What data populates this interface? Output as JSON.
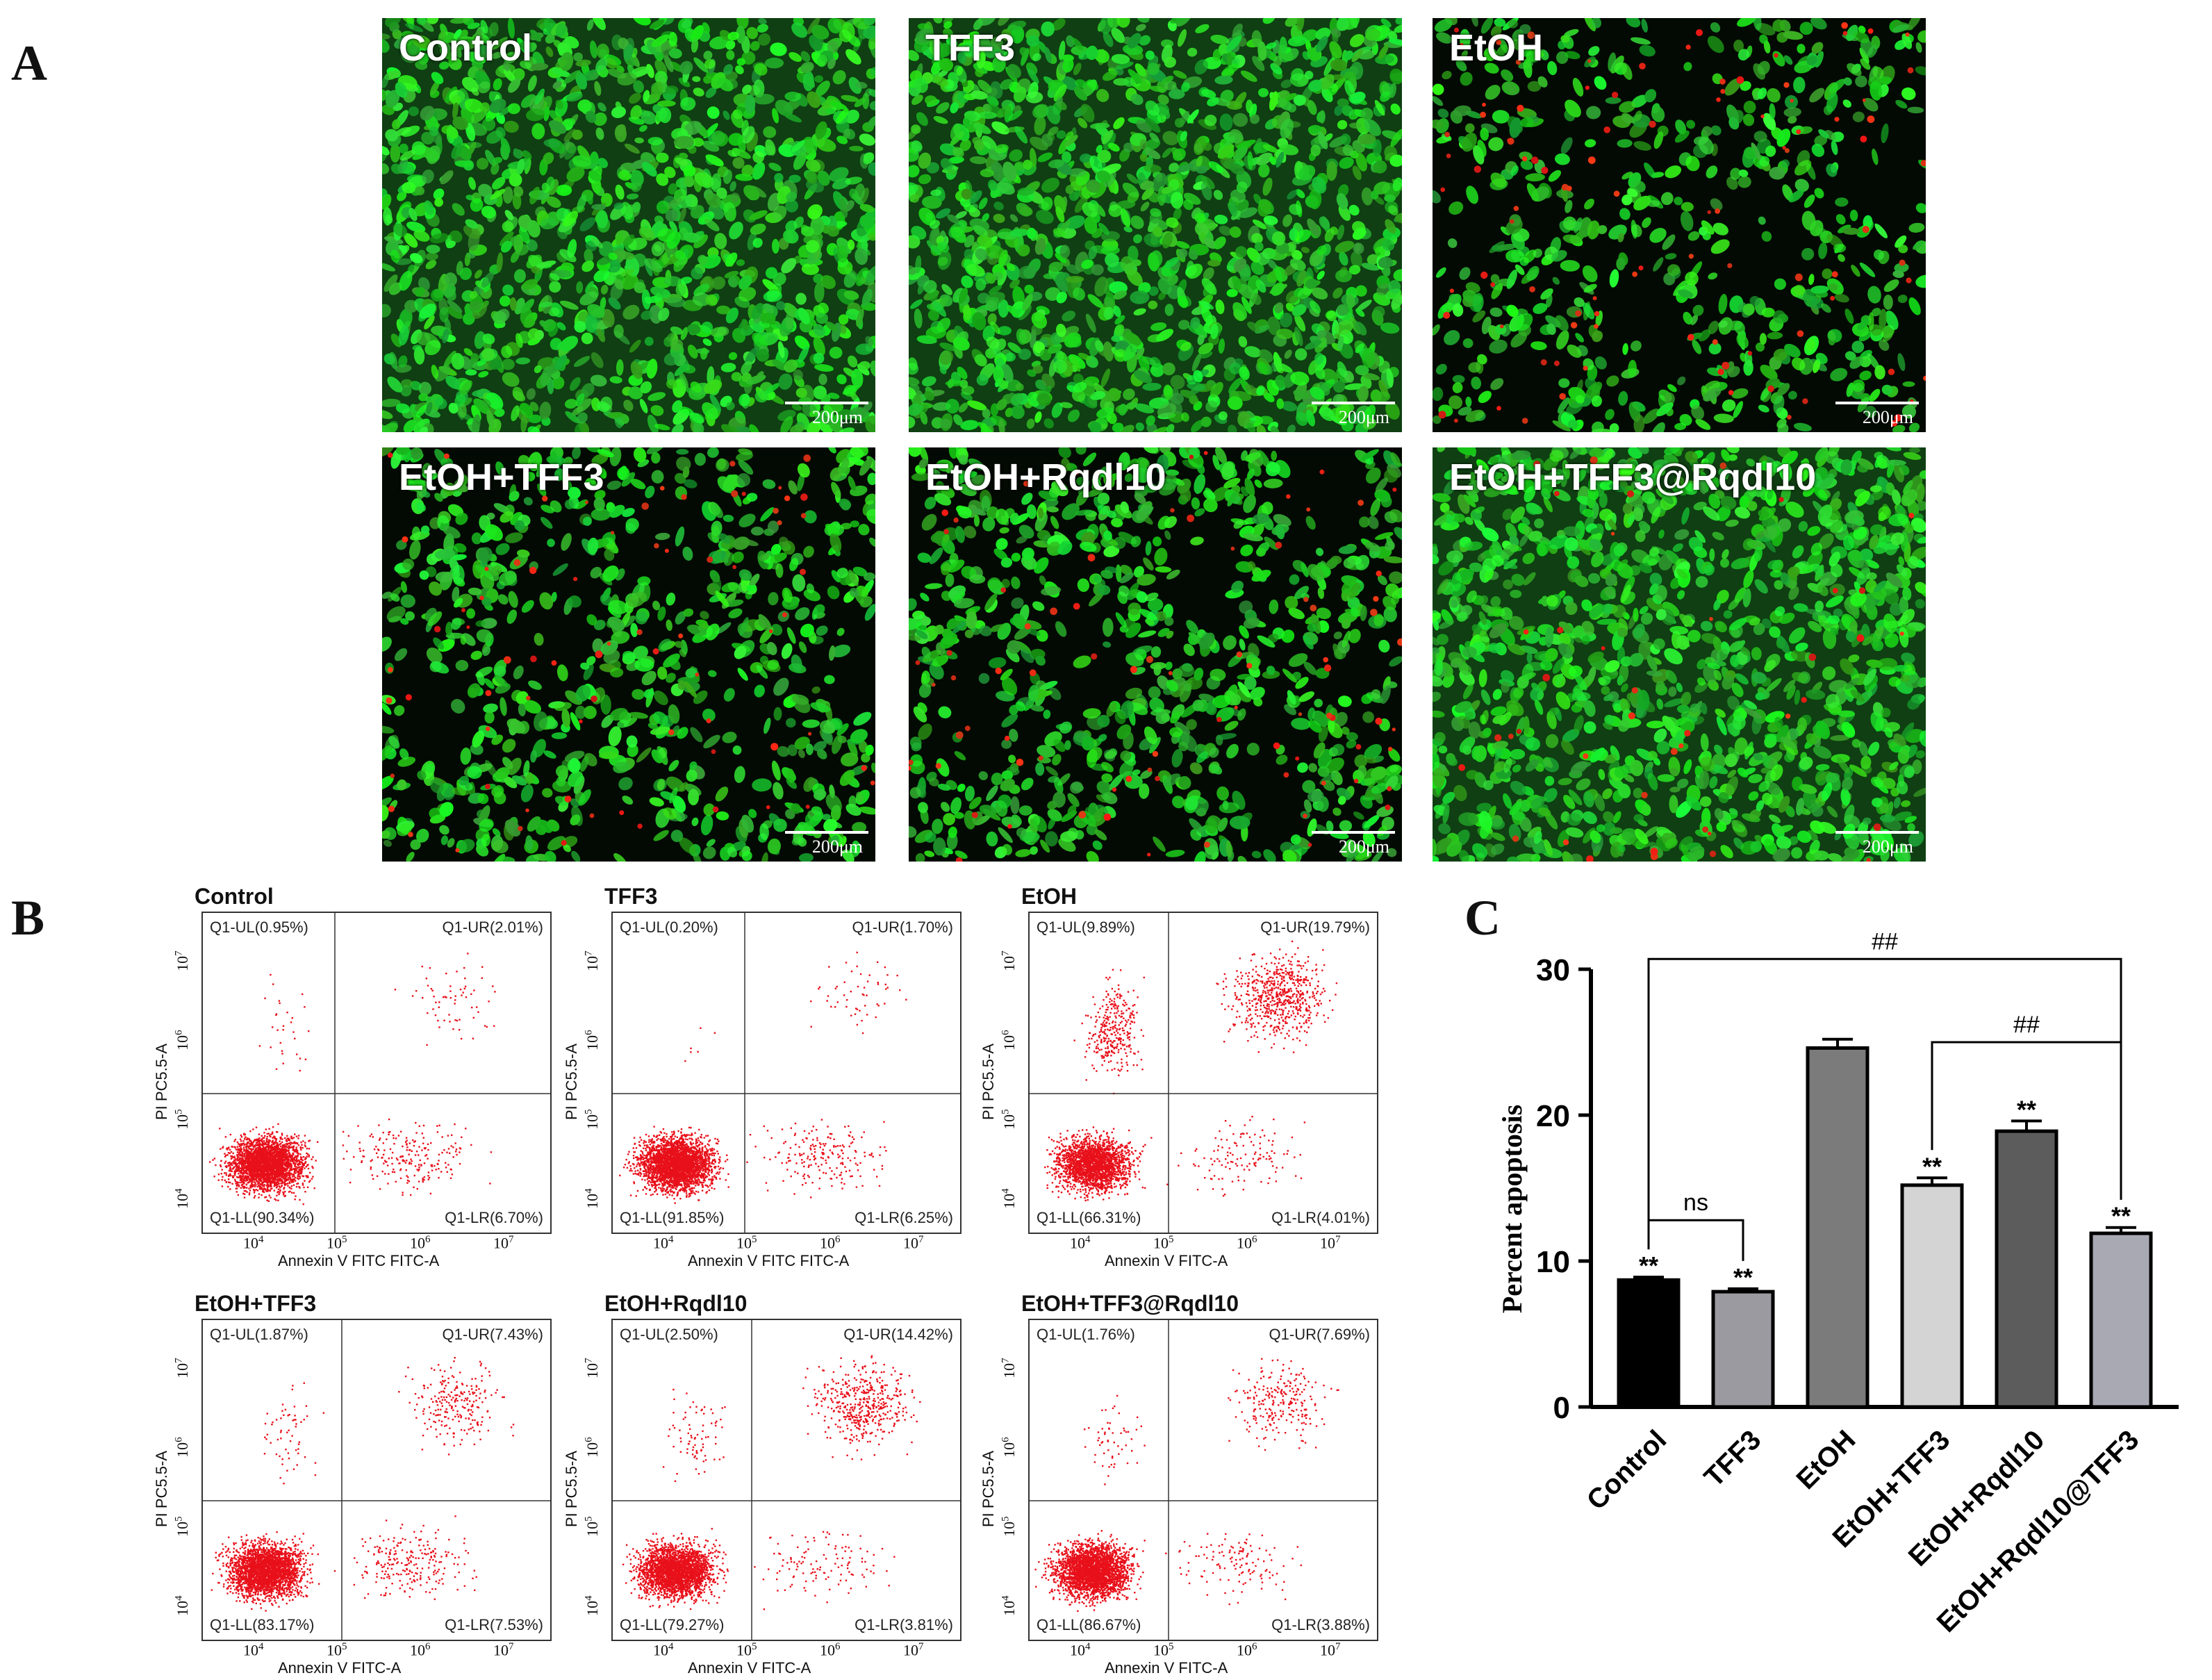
{
  "panel_letters": {
    "a": "A",
    "b": "B",
    "c": "C"
  },
  "micrographs": [
    {
      "label": "Control",
      "scale": "200μm",
      "red_level": 0.0,
      "density": 0.95,
      "seed": 11
    },
    {
      "label": "TFF3",
      "scale": "200μm",
      "red_level": 0.0,
      "density": 1.0,
      "seed": 23
    },
    {
      "label": "EtOH",
      "scale": "200μm",
      "red_level": 0.12,
      "density": 0.55,
      "seed": 37
    },
    {
      "label": "EtOH+TFF3",
      "scale": "200μm",
      "red_level": 0.07,
      "density": 0.7,
      "seed": 41
    },
    {
      "label": "EtOH+Rqdl10",
      "scale": "200μm",
      "red_level": 0.07,
      "density": 0.78,
      "seed": 53
    },
    {
      "label": "EtOH+TFF3@Rqdl10",
      "scale": "200μm",
      "red_level": 0.03,
      "density": 0.9,
      "seed": 67
    }
  ],
  "flow_plots": [
    {
      "title": "Control",
      "ul": "Q1-UL(0.95%)",
      "ur": "Q1-UR(2.01%)",
      "ll": "Q1-LL(90.34%)",
      "lr": "Q1-LR(6.70%)",
      "xlabel": "Annexin V FITC FITC-A",
      "ylabel": "PI PC5.5-A",
      "ul_v": 0.95,
      "ur_v": 2.01,
      "ll_v": 90.34,
      "lr_v": 6.7
    },
    {
      "title": "TFF3",
      "ul": "Q1-UL(0.20%)",
      "ur": "Q1-UR(1.70%)",
      "ll": "Q1-LL(91.85%)",
      "lr": "Q1-LR(6.25%)",
      "xlabel": "Annexin V FITC FITC-A",
      "ylabel": "PI PC5.5-A",
      "ul_v": 0.2,
      "ur_v": 1.7,
      "ll_v": 91.85,
      "lr_v": 6.25
    },
    {
      "title": "EtOH",
      "ul": "Q1-UL(9.89%)",
      "ur": "Q1-UR(19.79%)",
      "ll": "Q1-LL(66.31%)",
      "lr": "Q1-LR(4.01%)",
      "xlabel": "Annexin V FITC-A",
      "ylabel": "PI PC5.5-A",
      "ul_v": 9.89,
      "ur_v": 19.79,
      "ll_v": 66.31,
      "lr_v": 4.01
    },
    {
      "title": "EtOH+TFF3",
      "ul": "Q1-UL(1.87%)",
      "ur": "Q1-UR(7.43%)",
      "ll": "Q1-LL(83.17%)",
      "lr": "Q1-LR(7.53%)",
      "xlabel": "Annexin V FITC-A",
      "ylabel": "PI PC5.5-A",
      "ul_v": 1.87,
      "ur_v": 7.43,
      "ll_v": 83.17,
      "lr_v": 7.53
    },
    {
      "title": "EtOH+Rqdl10",
      "ul": "Q1-UL(2.50%)",
      "ur": "Q1-UR(14.42%)",
      "ll": "Q1-LL(79.27%)",
      "lr": "Q1-LR(3.81%)",
      "xlabel": "Annexin V FITC-A",
      "ylabel": "PI PC5.5-A",
      "ul_v": 2.5,
      "ur_v": 14.42,
      "ll_v": 79.27,
      "lr_v": 3.81
    },
    {
      "title": "EtOH+TFF3@Rqdl10",
      "ul": "Q1-UL(1.76%)",
      "ur": "Q1-UR(7.69%)",
      "ll": "Q1-LL(86.67%)",
      "lr": "Q1-LR(3.88%)",
      "xlabel": "Annexin V FITC-A",
      "ylabel": "PI PC5.5-A",
      "ul_v": 1.76,
      "ur_v": 7.69,
      "ll_v": 86.67,
      "lr_v": 3.88
    }
  ],
  "flow_ticks": {
    "base": "10",
    "exps": [
      "4",
      "5",
      "6",
      "7"
    ]
  },
  "chart_data": {
    "type": "bar",
    "categories": [
      "Control",
      "TFF3",
      "EtOH",
      "EtOH+TFF3",
      "EtOH+Rqdl10",
      "EtOH+Rqdl10@TFF3"
    ],
    "values": [
      8.7,
      7.9,
      24.6,
      15.2,
      18.9,
      11.9
    ],
    "errors": [
      0.2,
      0.2,
      0.6,
      0.5,
      0.7,
      0.4
    ],
    "bar_colors": [
      "#000000",
      "#9a9aa0",
      "#7b7b7b",
      "#d4d4d4",
      "#5c5c5c",
      "#a9a9b3"
    ],
    "significance": [
      "**",
      "**",
      "",
      "**",
      "**",
      "**"
    ],
    "ylabel": "Percent apoptosis",
    "yticks": [
      "0",
      "10",
      "20",
      "30"
    ],
    "ylim": [
      0,
      30
    ],
    "brackets": [
      {
        "from": 0,
        "to": 1,
        "label": "ns",
        "y": 12.8
      },
      {
        "from": 3,
        "to": 5,
        "label": "##",
        "y": 25.0
      },
      {
        "from": 0,
        "to": 5,
        "label": "##",
        "y": 30.7
      }
    ]
  }
}
